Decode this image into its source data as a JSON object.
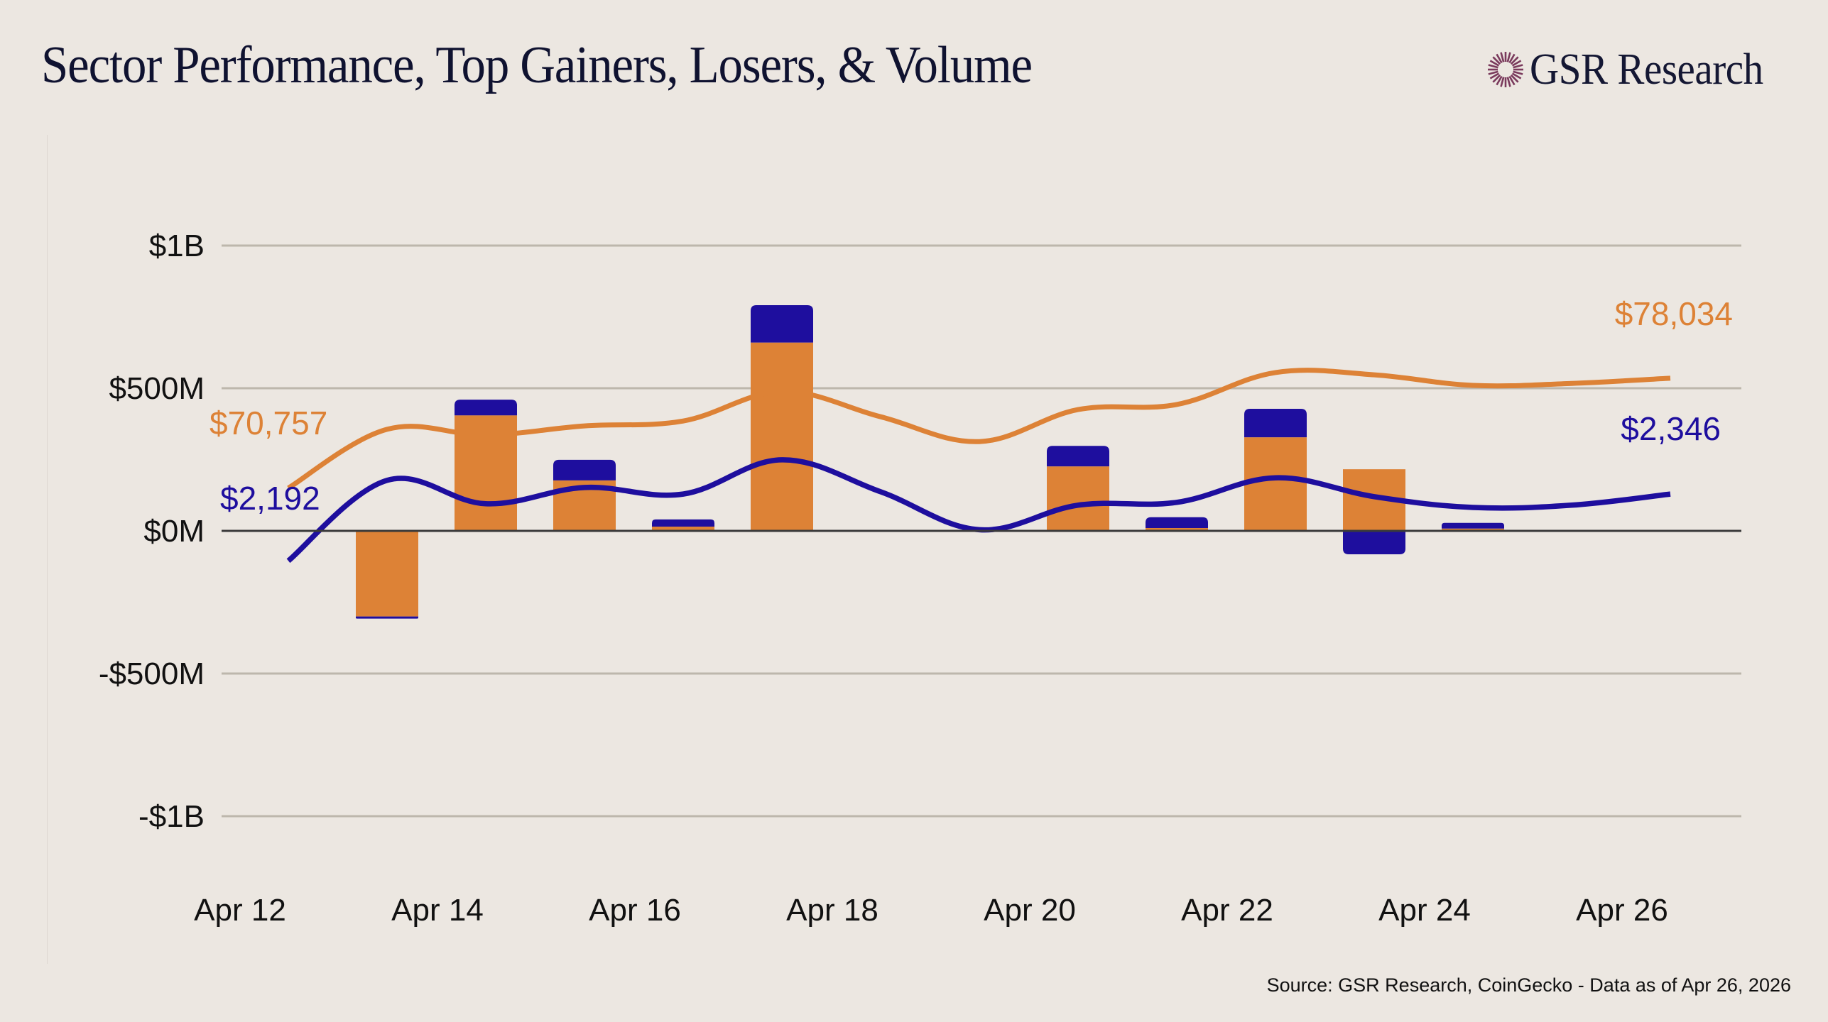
{
  "header": {
    "title": "Sector Performance, Top Gainers, Losers, & Volume",
    "brand_icon": "sunburst-logo-icon",
    "brand_name": "GSR Research"
  },
  "footer": {
    "source": "Source: GSR Research, CoinGecko - Data as of Apr 26, 2026"
  },
  "colors": {
    "background": "#ece7e1",
    "orange": "#dd8236",
    "blue": "#1e0e9e",
    "grid": "#bdb7ac",
    "zero_line": "#3a3a3a",
    "brand": "#7a3a5c"
  },
  "chart_data": {
    "type": "bar",
    "title": "Sector Performance, Top Gainers, Losers, & Volume",
    "xlabel": "",
    "ylabel": "",
    "ylim": [
      -1000,
      1000
    ],
    "y_unit": "USD millions",
    "y_ticks": [
      {
        "value": 1000,
        "label": "$1B"
      },
      {
        "value": 500,
        "label": "$500M"
      },
      {
        "value": 0,
        "label": "$0M"
      },
      {
        "value": -500,
        "label": "-$500M"
      },
      {
        "value": -1000,
        "label": "-$1B"
      }
    ],
    "x_tick_labels": [
      "Apr 12",
      "Apr 14",
      "Apr 16",
      "Apr 18",
      "Apr 20",
      "Apr 22",
      "Apr 24",
      "Apr 26"
    ],
    "categories": [
      "Apr 12",
      "Apr 13",
      "Apr 14",
      "Apr 15",
      "Apr 16",
      "Apr 17",
      "Apr 18",
      "Apr 19",
      "Apr 20",
      "Apr 21",
      "Apr 22",
      "Apr 23",
      "Apr 24",
      "Apr 25",
      "Apr 26"
    ],
    "grid": true,
    "legend": "none",
    "bar_series": [
      {
        "name": "Orange flow",
        "color_key": "orange",
        "values": [
          0,
          -300,
          405,
          177,
          15,
          660,
          0,
          0,
          226,
          10,
          328,
          216,
          8,
          0,
          0
        ]
      },
      {
        "name": "Blue flow",
        "color_key": "blue",
        "values": [
          0,
          -2,
          55,
          72,
          25,
          131,
          0,
          0,
          72,
          38,
          100,
          -82,
          20,
          0,
          0
        ]
      }
    ],
    "line_series": [
      {
        "name": "Orange price line",
        "color_key": "orange",
        "values": [
          150,
          356,
          336,
          368,
          385,
          488,
          400,
          313,
          425,
          443,
          555,
          547,
          510,
          517,
          535
        ],
        "start_label": "$70,757",
        "end_label": "$78,034"
      },
      {
        "name": "Blue price line",
        "color_key": "blue",
        "values": [
          -105,
          177,
          95,
          152,
          129,
          249,
          137,
          4,
          90,
          100,
          186,
          120,
          82,
          90,
          129
        ],
        "start_label": "$2,192",
        "end_label": "$2,346"
      }
    ]
  }
}
